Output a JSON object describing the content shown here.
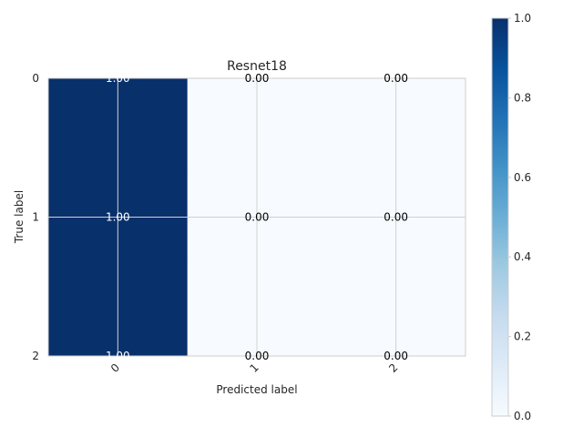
{
  "chart_data": {
    "type": "heatmap",
    "title": "Resnet18",
    "xlabel": "Predicted label",
    "ylabel": "True label",
    "x_categories": [
      "0",
      "1",
      "2"
    ],
    "y_categories": [
      "0",
      "1",
      "2"
    ],
    "values": [
      [
        1.0,
        0.0,
        0.0
      ],
      [
        1.0,
        0.0,
        0.0
      ],
      [
        1.0,
        0.0,
        0.0
      ]
    ],
    "cell_labels": [
      [
        "1.00",
        "0.00",
        "0.00"
      ],
      [
        "1.00",
        "0.00",
        "0.00"
      ],
      [
        "1.00",
        "0.00",
        "0.00"
      ]
    ],
    "colorbar": {
      "range": [
        0.0,
        1.0
      ],
      "ticks": [
        "0.0",
        "0.2",
        "0.4",
        "0.6",
        "0.8",
        "1.0"
      ],
      "colormap": "Blues"
    },
    "colors": {
      "low": "#f7fbff",
      "high": "#08306b",
      "text_on_dark": "#ffffff",
      "text_on_light": "#000000",
      "grid": "#d0d0d0"
    },
    "grid": true,
    "x_tick_rotation_deg": 45
  }
}
